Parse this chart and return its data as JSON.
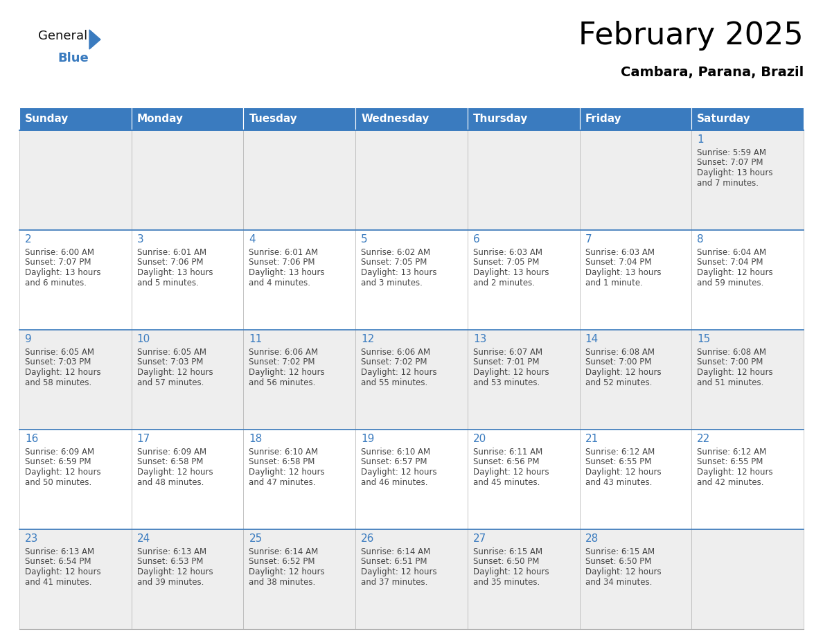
{
  "title": "February 2025",
  "subtitle": "Cambara, Parana, Brazil",
  "header_bg": "#3a7bbf",
  "header_text": "#ffffff",
  "day_names": [
    "Sunday",
    "Monday",
    "Tuesday",
    "Wednesday",
    "Thursday",
    "Friday",
    "Saturday"
  ],
  "row_bg_even": "#eeeeee",
  "row_bg_odd": "#ffffff",
  "cell_border_color": "#aaaaaa",
  "row_separator_color": "#3a7bbf",
  "day_number_color": "#3a7bbf",
  "info_text_color": "#444444",
  "calendar_data": [
    [
      {
        "day": null,
        "sunrise": null,
        "sunset": null,
        "daylight": null
      },
      {
        "day": null,
        "sunrise": null,
        "sunset": null,
        "daylight": null
      },
      {
        "day": null,
        "sunrise": null,
        "sunset": null,
        "daylight": null
      },
      {
        "day": null,
        "sunrise": null,
        "sunset": null,
        "daylight": null
      },
      {
        "day": null,
        "sunrise": null,
        "sunset": null,
        "daylight": null
      },
      {
        "day": null,
        "sunrise": null,
        "sunset": null,
        "daylight": null
      },
      {
        "day": 1,
        "sunrise": "5:59 AM",
        "sunset": "7:07 PM",
        "daylight": "13 hours and 7 minutes."
      }
    ],
    [
      {
        "day": 2,
        "sunrise": "6:00 AM",
        "sunset": "7:07 PM",
        "daylight": "13 hours and 6 minutes."
      },
      {
        "day": 3,
        "sunrise": "6:01 AM",
        "sunset": "7:06 PM",
        "daylight": "13 hours and 5 minutes."
      },
      {
        "day": 4,
        "sunrise": "6:01 AM",
        "sunset": "7:06 PM",
        "daylight": "13 hours and 4 minutes."
      },
      {
        "day": 5,
        "sunrise": "6:02 AM",
        "sunset": "7:05 PM",
        "daylight": "13 hours and 3 minutes."
      },
      {
        "day": 6,
        "sunrise": "6:03 AM",
        "sunset": "7:05 PM",
        "daylight": "13 hours and 2 minutes."
      },
      {
        "day": 7,
        "sunrise": "6:03 AM",
        "sunset": "7:04 PM",
        "daylight": "13 hours and 1 minute."
      },
      {
        "day": 8,
        "sunrise": "6:04 AM",
        "sunset": "7:04 PM",
        "daylight": "12 hours and 59 minutes."
      }
    ],
    [
      {
        "day": 9,
        "sunrise": "6:05 AM",
        "sunset": "7:03 PM",
        "daylight": "12 hours and 58 minutes."
      },
      {
        "day": 10,
        "sunrise": "6:05 AM",
        "sunset": "7:03 PM",
        "daylight": "12 hours and 57 minutes."
      },
      {
        "day": 11,
        "sunrise": "6:06 AM",
        "sunset": "7:02 PM",
        "daylight": "12 hours and 56 minutes."
      },
      {
        "day": 12,
        "sunrise": "6:06 AM",
        "sunset": "7:02 PM",
        "daylight": "12 hours and 55 minutes."
      },
      {
        "day": 13,
        "sunrise": "6:07 AM",
        "sunset": "7:01 PM",
        "daylight": "12 hours and 53 minutes."
      },
      {
        "day": 14,
        "sunrise": "6:08 AM",
        "sunset": "7:00 PM",
        "daylight": "12 hours and 52 minutes."
      },
      {
        "day": 15,
        "sunrise": "6:08 AM",
        "sunset": "7:00 PM",
        "daylight": "12 hours and 51 minutes."
      }
    ],
    [
      {
        "day": 16,
        "sunrise": "6:09 AM",
        "sunset": "6:59 PM",
        "daylight": "12 hours and 50 minutes."
      },
      {
        "day": 17,
        "sunrise": "6:09 AM",
        "sunset": "6:58 PM",
        "daylight": "12 hours and 48 minutes."
      },
      {
        "day": 18,
        "sunrise": "6:10 AM",
        "sunset": "6:58 PM",
        "daylight": "12 hours and 47 minutes."
      },
      {
        "day": 19,
        "sunrise": "6:10 AM",
        "sunset": "6:57 PM",
        "daylight": "12 hours and 46 minutes."
      },
      {
        "day": 20,
        "sunrise": "6:11 AM",
        "sunset": "6:56 PM",
        "daylight": "12 hours and 45 minutes."
      },
      {
        "day": 21,
        "sunrise": "6:12 AM",
        "sunset": "6:55 PM",
        "daylight": "12 hours and 43 minutes."
      },
      {
        "day": 22,
        "sunrise": "6:12 AM",
        "sunset": "6:55 PM",
        "daylight": "12 hours and 42 minutes."
      }
    ],
    [
      {
        "day": 23,
        "sunrise": "6:13 AM",
        "sunset": "6:54 PM",
        "daylight": "12 hours and 41 minutes."
      },
      {
        "day": 24,
        "sunrise": "6:13 AM",
        "sunset": "6:53 PM",
        "daylight": "12 hours and 39 minutes."
      },
      {
        "day": 25,
        "sunrise": "6:14 AM",
        "sunset": "6:52 PM",
        "daylight": "12 hours and 38 minutes."
      },
      {
        "day": 26,
        "sunrise": "6:14 AM",
        "sunset": "6:51 PM",
        "daylight": "12 hours and 37 minutes."
      },
      {
        "day": 27,
        "sunrise": "6:15 AM",
        "sunset": "6:50 PM",
        "daylight": "12 hours and 35 minutes."
      },
      {
        "day": 28,
        "sunrise": "6:15 AM",
        "sunset": "6:50 PM",
        "daylight": "12 hours and 34 minutes."
      },
      {
        "day": null,
        "sunrise": null,
        "sunset": null,
        "daylight": null
      }
    ]
  ],
  "logo_text1": "General",
  "logo_text2": "Blue",
  "logo_triangle_color": "#3a7bbf",
  "logo_text1_color": "#111111",
  "logo_text2_color": "#3a7bbf",
  "title_fontsize": 32,
  "subtitle_fontsize": 14,
  "day_name_fontsize": 11,
  "day_number_fontsize": 11,
  "cell_text_fontsize": 8.5
}
